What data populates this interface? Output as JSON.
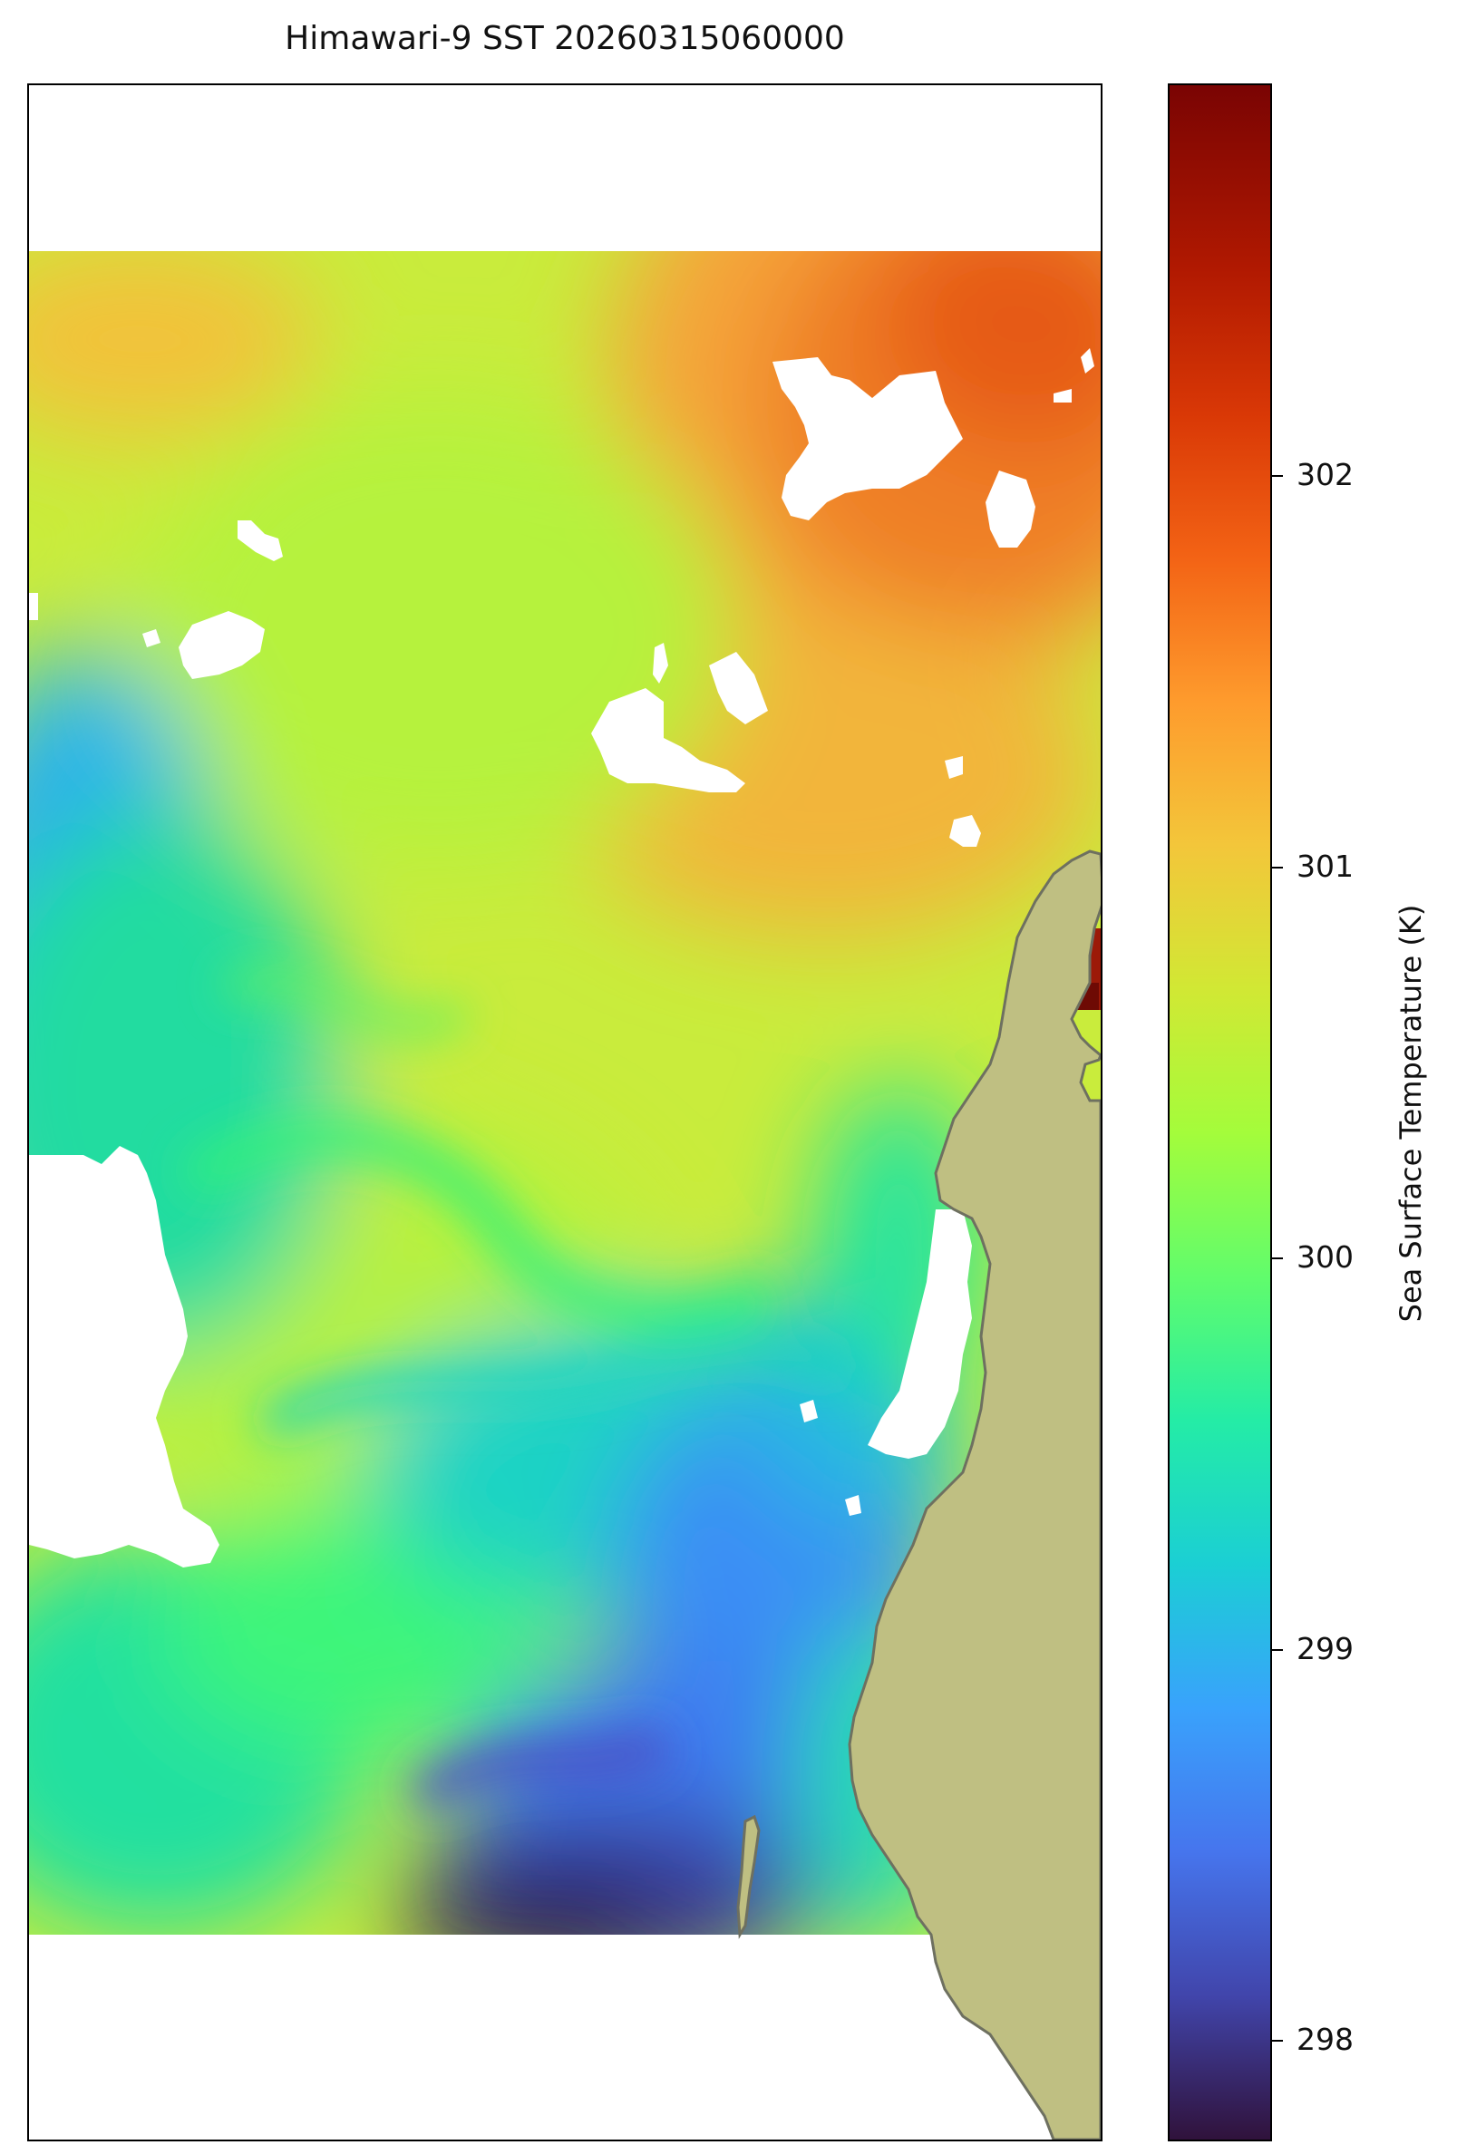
{
  "title": "Himawari-9 SST 20260315060000",
  "colorbar": {
    "label": "Sea Surface Temperature (K)",
    "min": 297.9,
    "max": 302.9,
    "ticks": [
      "298",
      "299",
      "300",
      "301",
      "302"
    ],
    "colormap": "turbo"
  },
  "colors": {
    "land": "#bfbf82",
    "coast": "#6e7060",
    "no_data": "#ffffff"
  }
}
